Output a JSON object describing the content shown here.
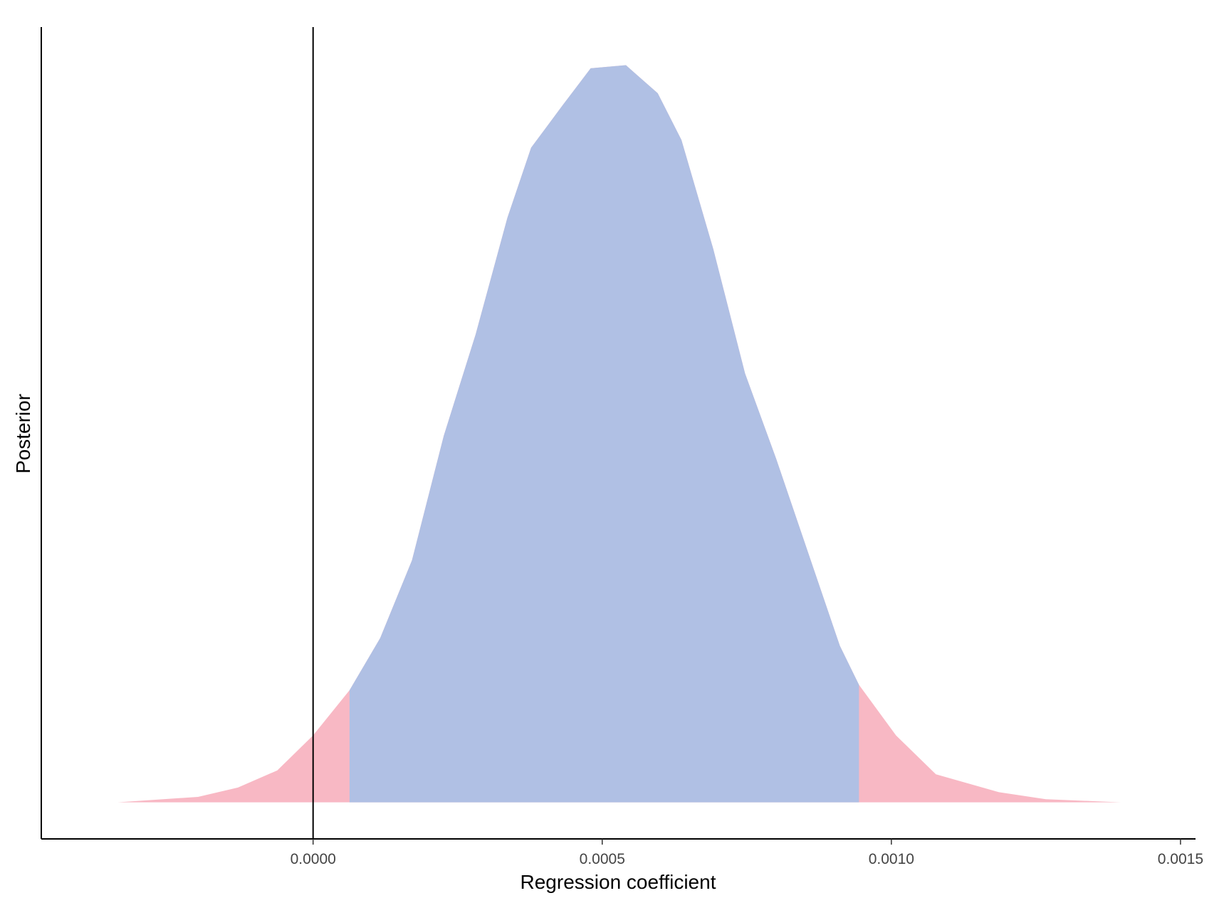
{
  "chart_data": {
    "type": "density",
    "x_label": "Regression coefficient",
    "y_label": "Posterior",
    "x": [
      -0.000338,
      -0.000199,
      -0.00013,
      -6.2e-05,
      0,
      6.3e-05,
      0.000116,
      0.000171,
      0.000226,
      0.000281,
      0.000336,
      0.000377,
      0.000432,
      0.00048,
      0.000541,
      0.000596,
      0.000637,
      0.000692,
      0.000747,
      0.000801,
      0.000856,
      0.000911,
      0.000944,
      0.001008,
      0.001077,
      0.001186,
      0.001267,
      0.001397
    ],
    "values": [
      0,
      0.7,
      1.9,
      4.1,
      8.6,
      14.4,
      21.1,
      31.1,
      47.1,
      60.1,
      75.1,
      84.1,
      89.6,
      94.3,
      94.7,
      91.1,
      85.1,
      71.1,
      55.1,
      44.1,
      32.1,
      20.1,
      15.1,
      8.6,
      3.6,
      1.3,
      0.4,
      0
    ],
    "color": "#f8b8c4",
    "interval": [
      6.3e-05,
      0.000944
    ],
    "interval_color": "#b0c0e4",
    "vline": 0,
    "xlim": [
      -0.00047,
      0.001526
    ],
    "ylim": [
      -4.7,
      99.6
    ],
    "xticks": [
      {
        "value": 0,
        "label": "0.0000"
      },
      0.0005,
      {
        "value": 0.001,
        "label": "0.0010"
      },
      0.0015
    ]
  }
}
